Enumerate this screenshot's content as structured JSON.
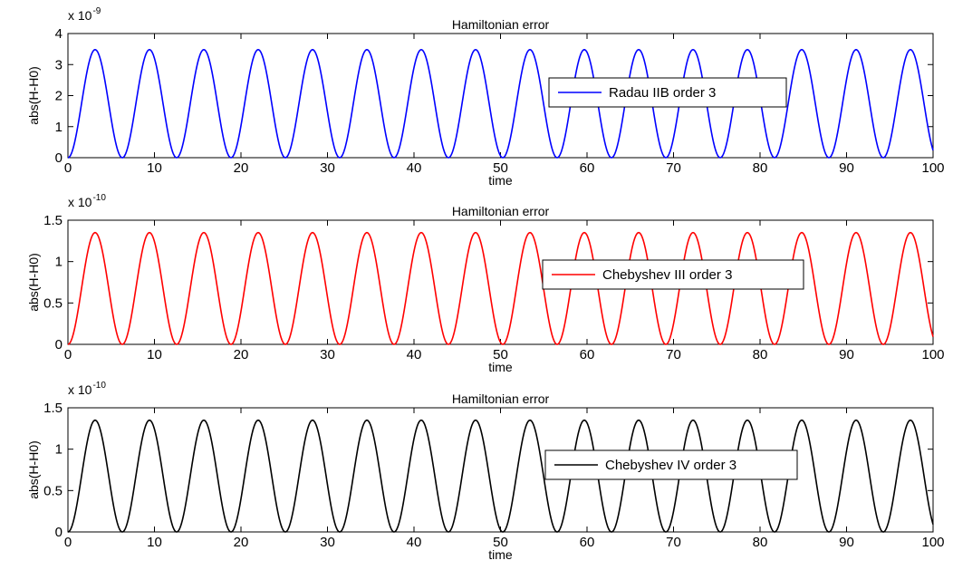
{
  "chart_data": [
    {
      "type": "line",
      "title": "Hamiltonian error",
      "xlabel": "time",
      "ylabel": "abs(H-H0)",
      "exponent_label": "x 10",
      "exponent_power": "-9",
      "xlim": [
        0,
        100
      ],
      "ylim": [
        0,
        4
      ],
      "xticks": [
        "0",
        "10",
        "20",
        "30",
        "40",
        "50",
        "60",
        "70",
        "80",
        "90",
        "100"
      ],
      "yticks": [
        "0",
        "1",
        "2",
        "3",
        "4"
      ],
      "grid": false,
      "legend_placement": "right",
      "series": [
        {
          "name": "Radau IIB order 3",
          "color": "#0000ff",
          "amplitude": 3.48,
          "period": 6.283
        }
      ]
    },
    {
      "type": "line",
      "title": "Hamiltonian error",
      "xlabel": "time",
      "ylabel": "abs(H-H0)",
      "exponent_label": "x 10",
      "exponent_power": "-10",
      "xlim": [
        0,
        100
      ],
      "ylim": [
        0,
        1.5
      ],
      "xticks": [
        "0",
        "10",
        "20",
        "30",
        "40",
        "50",
        "60",
        "70",
        "80",
        "90",
        "100"
      ],
      "yticks": [
        "0",
        "0.5",
        "1",
        "1.5"
      ],
      "grid": false,
      "legend_placement": "right",
      "series": [
        {
          "name": "Chebyshev III order 3",
          "color": "#ff0000",
          "amplitude": 1.35,
          "period": 6.283
        }
      ]
    },
    {
      "type": "line",
      "title": "Hamiltonian error",
      "xlabel": "time",
      "ylabel": "abs(H-H0)",
      "exponent_label": "x 10",
      "exponent_power": "-10",
      "xlim": [
        0,
        100
      ],
      "ylim": [
        0,
        1.5
      ],
      "xticks": [
        "0",
        "10",
        "20",
        "30",
        "40",
        "50",
        "60",
        "70",
        "80",
        "90",
        "100"
      ],
      "yticks": [
        "0",
        "0.5",
        "1",
        "1.5"
      ],
      "grid": false,
      "legend_placement": "right",
      "series": [
        {
          "name": "Chebyshev IV order 3",
          "color": "#000000",
          "amplitude": 1.35,
          "period": 6.283
        }
      ]
    }
  ]
}
